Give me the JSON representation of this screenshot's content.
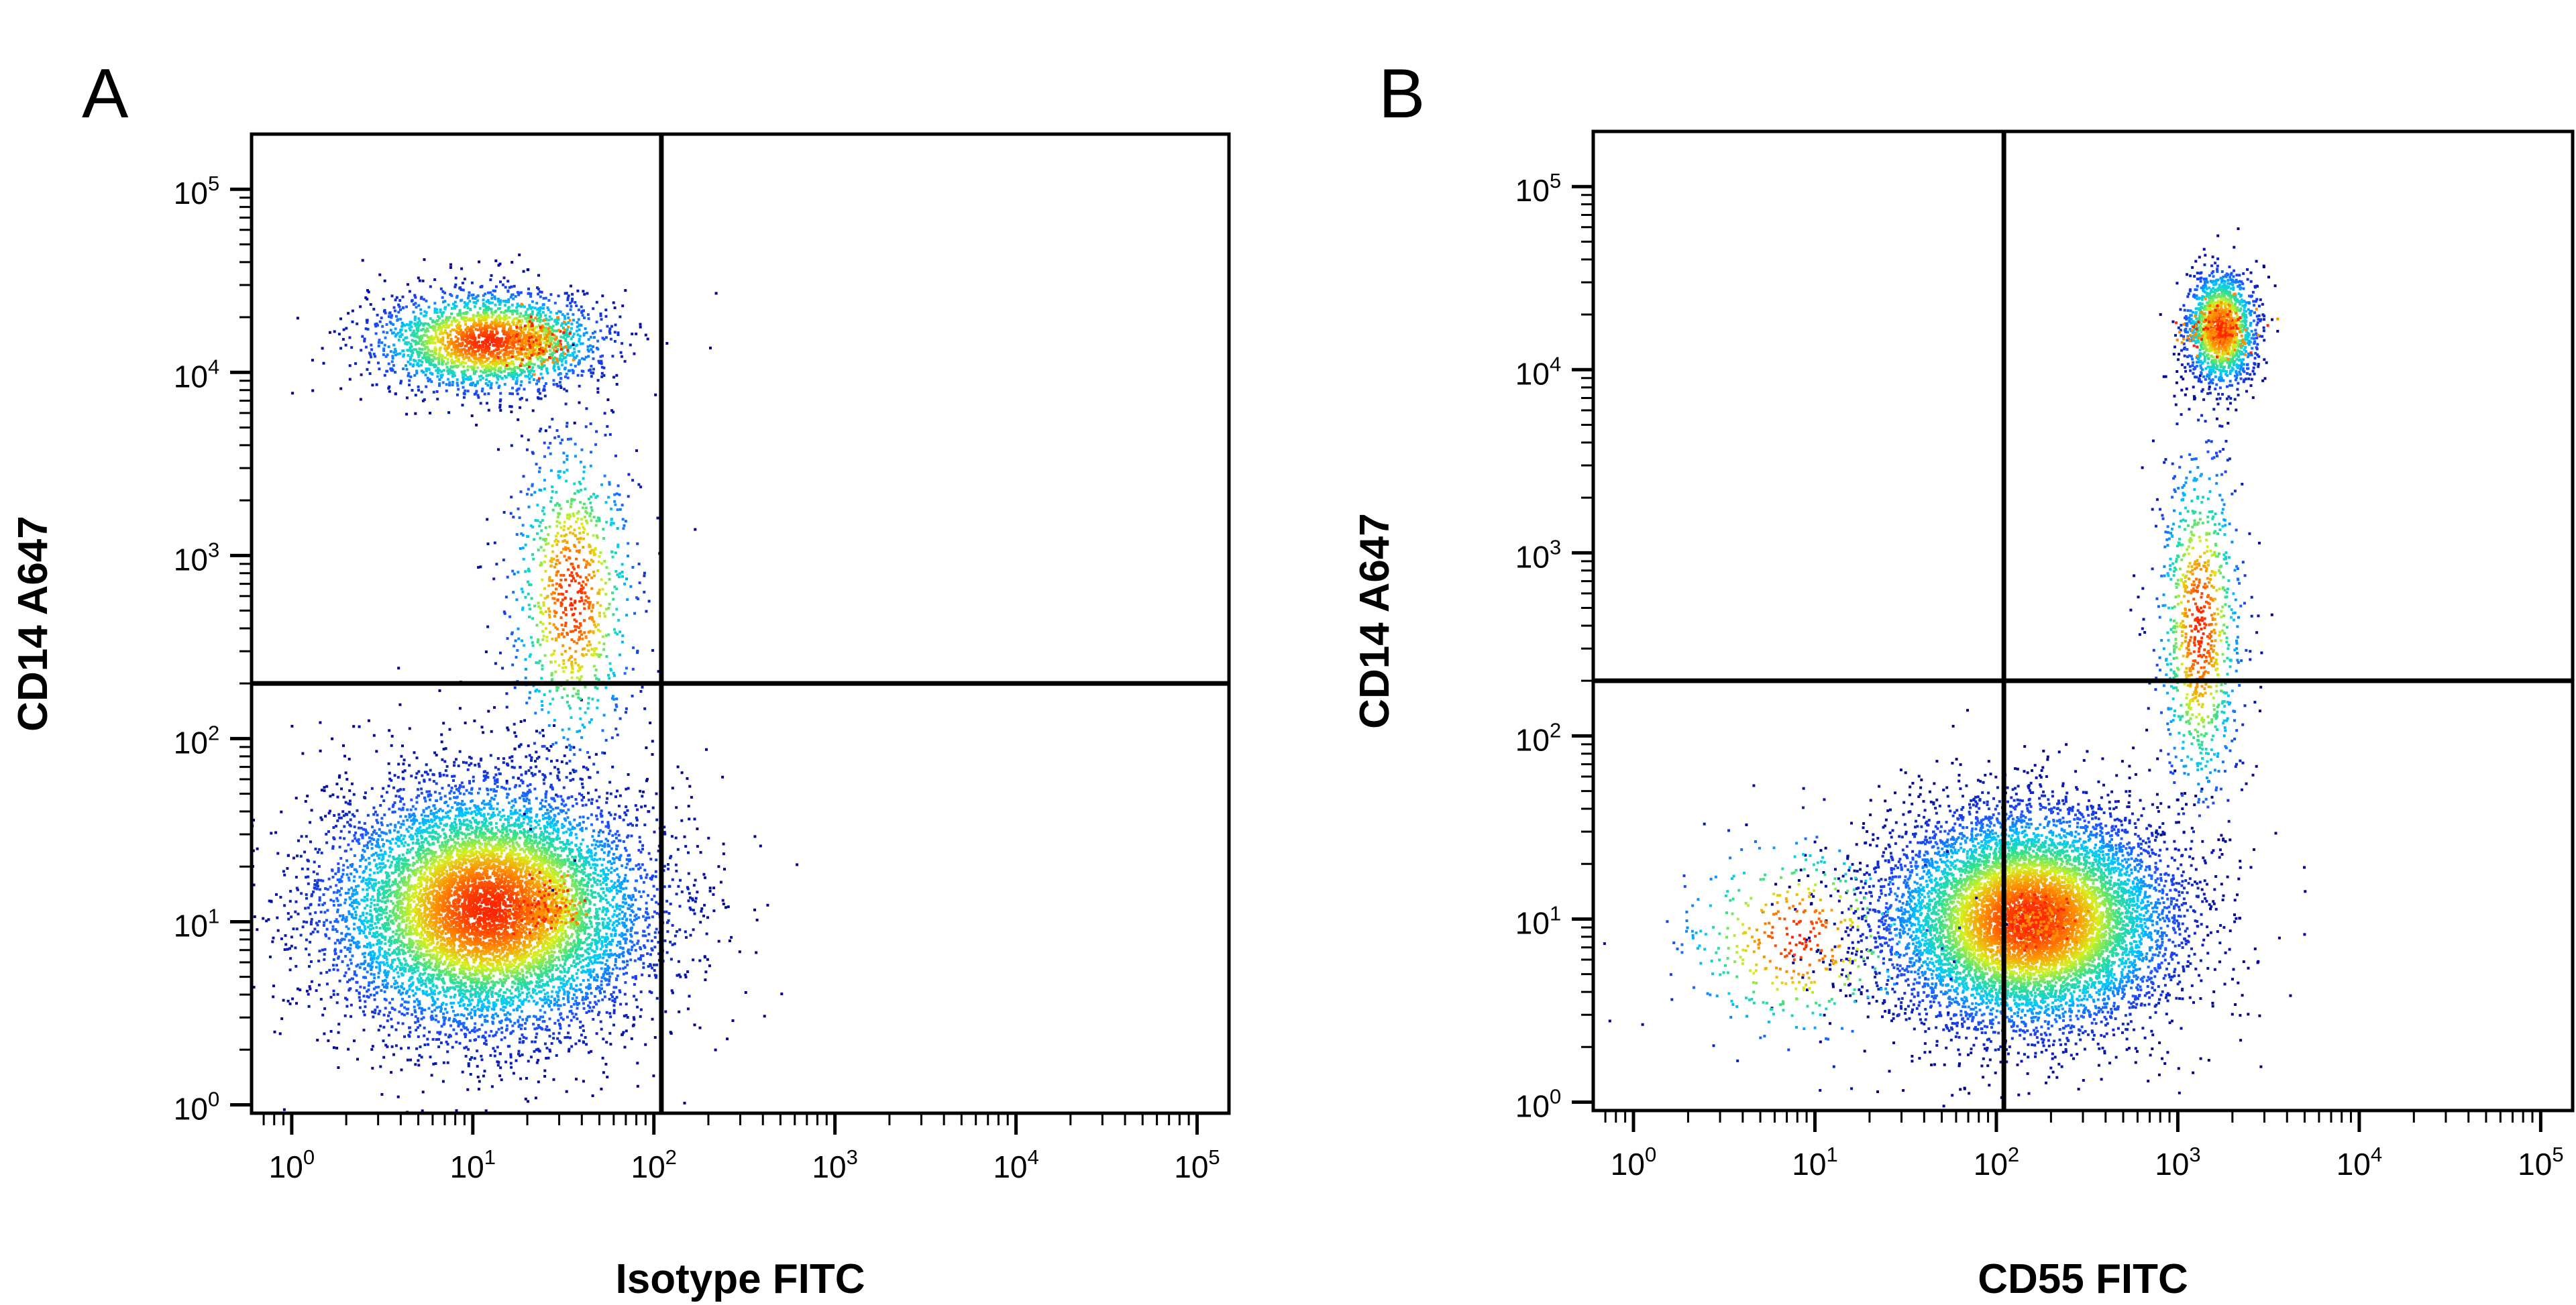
{
  "panels": [
    {
      "letter": "A",
      "xlabel": "Isotype FITC",
      "ylabel": "CD14 A647"
    },
    {
      "letter": "B",
      "xlabel": "CD55 FITC",
      "ylabel": "CD14 A647"
    }
  ],
  "chart_data": [
    {
      "type": "scatter",
      "title": "",
      "xlabel": "Isotype FITC",
      "ylabel": "CD14 A647",
      "xscale": "log",
      "yscale": "log",
      "xlim": [
        0.6,
        150000
      ],
      "ylim": [
        0.9,
        200000
      ],
      "x_ticks": [
        1,
        10,
        100,
        1000,
        10000,
        100000
      ],
      "y_ticks": [
        1,
        10,
        100,
        1000,
        10000,
        100000
      ],
      "x_tick_labels": [
        {
          "base": "10",
          "exp": "0"
        },
        {
          "base": "10",
          "exp": "1"
        },
        {
          "base": "10",
          "exp": "2"
        },
        {
          "base": "10",
          "exp": "3"
        },
        {
          "base": "10",
          "exp": "4"
        },
        {
          "base": "10",
          "exp": "5"
        }
      ],
      "y_tick_labels": [
        {
          "base": "10",
          "exp": "0"
        },
        {
          "base": "10",
          "exp": "1"
        },
        {
          "base": "10",
          "exp": "2"
        },
        {
          "base": "10",
          "exp": "3"
        },
        {
          "base": "10",
          "exp": "4"
        },
        {
          "base": "10",
          "exp": "5"
        }
      ],
      "gates": {
        "x": 110,
        "y": 200
      },
      "grid": false,
      "legend": "none",
      "color_scale": [
        "#00008b",
        "#1e50ff",
        "#00c8ff",
        "#34e08a",
        "#d6f01e",
        "#ff8c00",
        "#ff2400"
      ],
      "populations": [
        {
          "x_center": 12,
          "y_center": 12,
          "x_spread": 0.45,
          "y_spread": 0.34,
          "count": 9000,
          "peak": [
            25,
            12
          ]
        },
        {
          "x_center": 12,
          "y_center": 15000,
          "x_spread": 0.32,
          "y_spread": 0.14,
          "count": 2300,
          "peak": [
            22,
            15000
          ]
        },
        {
          "x_center": 35,
          "y_center": 600,
          "x_spread": 0.18,
          "y_spread": 0.45,
          "count": 900
        }
      ]
    },
    {
      "type": "scatter",
      "title": "",
      "xlabel": "CD55 FITC",
      "ylabel": "CD14 A647",
      "xscale": "log",
      "yscale": "log",
      "xlim": [
        0.6,
        150000
      ],
      "ylim": [
        0.9,
        200000
      ],
      "x_ticks": [
        1,
        10,
        100,
        1000,
        10000,
        100000
      ],
      "y_ticks": [
        1,
        10,
        100,
        1000,
        10000,
        100000
      ],
      "x_tick_labels": [
        {
          "base": "10",
          "exp": "0"
        },
        {
          "base": "10",
          "exp": "1"
        },
        {
          "base": "10",
          "exp": "2"
        },
        {
          "base": "10",
          "exp": "3"
        },
        {
          "base": "10",
          "exp": "4"
        },
        {
          "base": "10",
          "exp": "5"
        }
      ],
      "y_tick_labels": [
        {
          "base": "10",
          "exp": "0"
        },
        {
          "base": "10",
          "exp": "1"
        },
        {
          "base": "10",
          "exp": "2"
        },
        {
          "base": "10",
          "exp": "3"
        },
        {
          "base": "10",
          "exp": "4"
        },
        {
          "base": "10",
          "exp": "5"
        }
      ],
      "gates": {
        "x": 110,
        "y": 200
      },
      "grid": false,
      "legend": "none",
      "color_scale": [
        "#00008b",
        "#1e50ff",
        "#00c8ff",
        "#34e08a",
        "#d6f01e",
        "#ff8c00",
        "#ff2400"
      ],
      "populations": [
        {
          "x_center": 150,
          "y_center": 10,
          "x_spread": 0.4,
          "y_spread": 0.3,
          "count": 9000,
          "peak": [
            170,
            10
          ]
        },
        {
          "x_center": 1700,
          "y_center": 17000,
          "x_spread": 0.1,
          "y_spread": 0.16,
          "count": 1400,
          "peak": [
            1700,
            17000
          ]
        },
        {
          "x_center": 1300,
          "y_center": 400,
          "x_spread": 0.12,
          "y_spread": 0.5,
          "count": 900
        },
        {
          "x_center": 8,
          "y_center": 8,
          "x_spread": 0.35,
          "y_spread": 0.3,
          "count": 400
        }
      ]
    }
  ]
}
